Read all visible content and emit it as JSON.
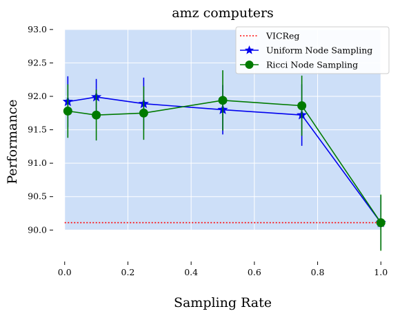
{
  "chart_data": {
    "type": "line",
    "title": "amz computers",
    "xlabel": "Sampling Rate",
    "ylabel": "Performance",
    "xlim": [
      -0.03,
      1.03
    ],
    "ylim": [
      89.55,
      93.05
    ],
    "shaded_region": {
      "x_start": 0.0,
      "x_end": 1.0,
      "y_start": 90.0,
      "y_end": 93.0,
      "color": "#cddff8"
    },
    "xticks": [
      0.0,
      0.2,
      0.4,
      0.6,
      0.8,
      1.0
    ],
    "xtick_labels": [
      "0.0",
      "0.2",
      "0.4",
      "0.6",
      "0.8",
      "1.0"
    ],
    "yticks": [
      90.0,
      90.5,
      91.0,
      91.5,
      92.0,
      92.5,
      93.0
    ],
    "ytick_labels": [
      "90.0",
      "90.5",
      "91.0",
      "91.5",
      "92.0",
      "92.5",
      "93.0"
    ],
    "grid": true,
    "legend_position": "top-right",
    "series": [
      {
        "name": "VICReg",
        "style": "dotted",
        "color": "#ff0000",
        "x": [
          0.0,
          1.0
        ],
        "y": [
          90.11,
          90.11
        ]
      },
      {
        "name": "Uniform Node Sampling",
        "style": "line-star",
        "color": "#0000ee",
        "x": [
          0.01,
          0.1,
          0.25,
          0.5,
          0.75,
          1.0
        ],
        "y": [
          91.92,
          91.99,
          91.89,
          91.8,
          91.72,
          90.11
        ],
        "err": [
          0.38,
          0.27,
          0.39,
          0.37,
          0.46,
          0.4
        ]
      },
      {
        "name": "Ricci Node Sampling",
        "style": "line-circle",
        "color": "#007a00",
        "x": [
          0.01,
          0.1,
          0.25,
          0.5,
          0.75,
          1.0
        ],
        "y": [
          91.78,
          91.72,
          91.75,
          91.94,
          91.86,
          90.11
        ],
        "err": [
          0.4,
          0.38,
          0.4,
          0.45,
          0.45,
          0.42
        ]
      }
    ]
  }
}
